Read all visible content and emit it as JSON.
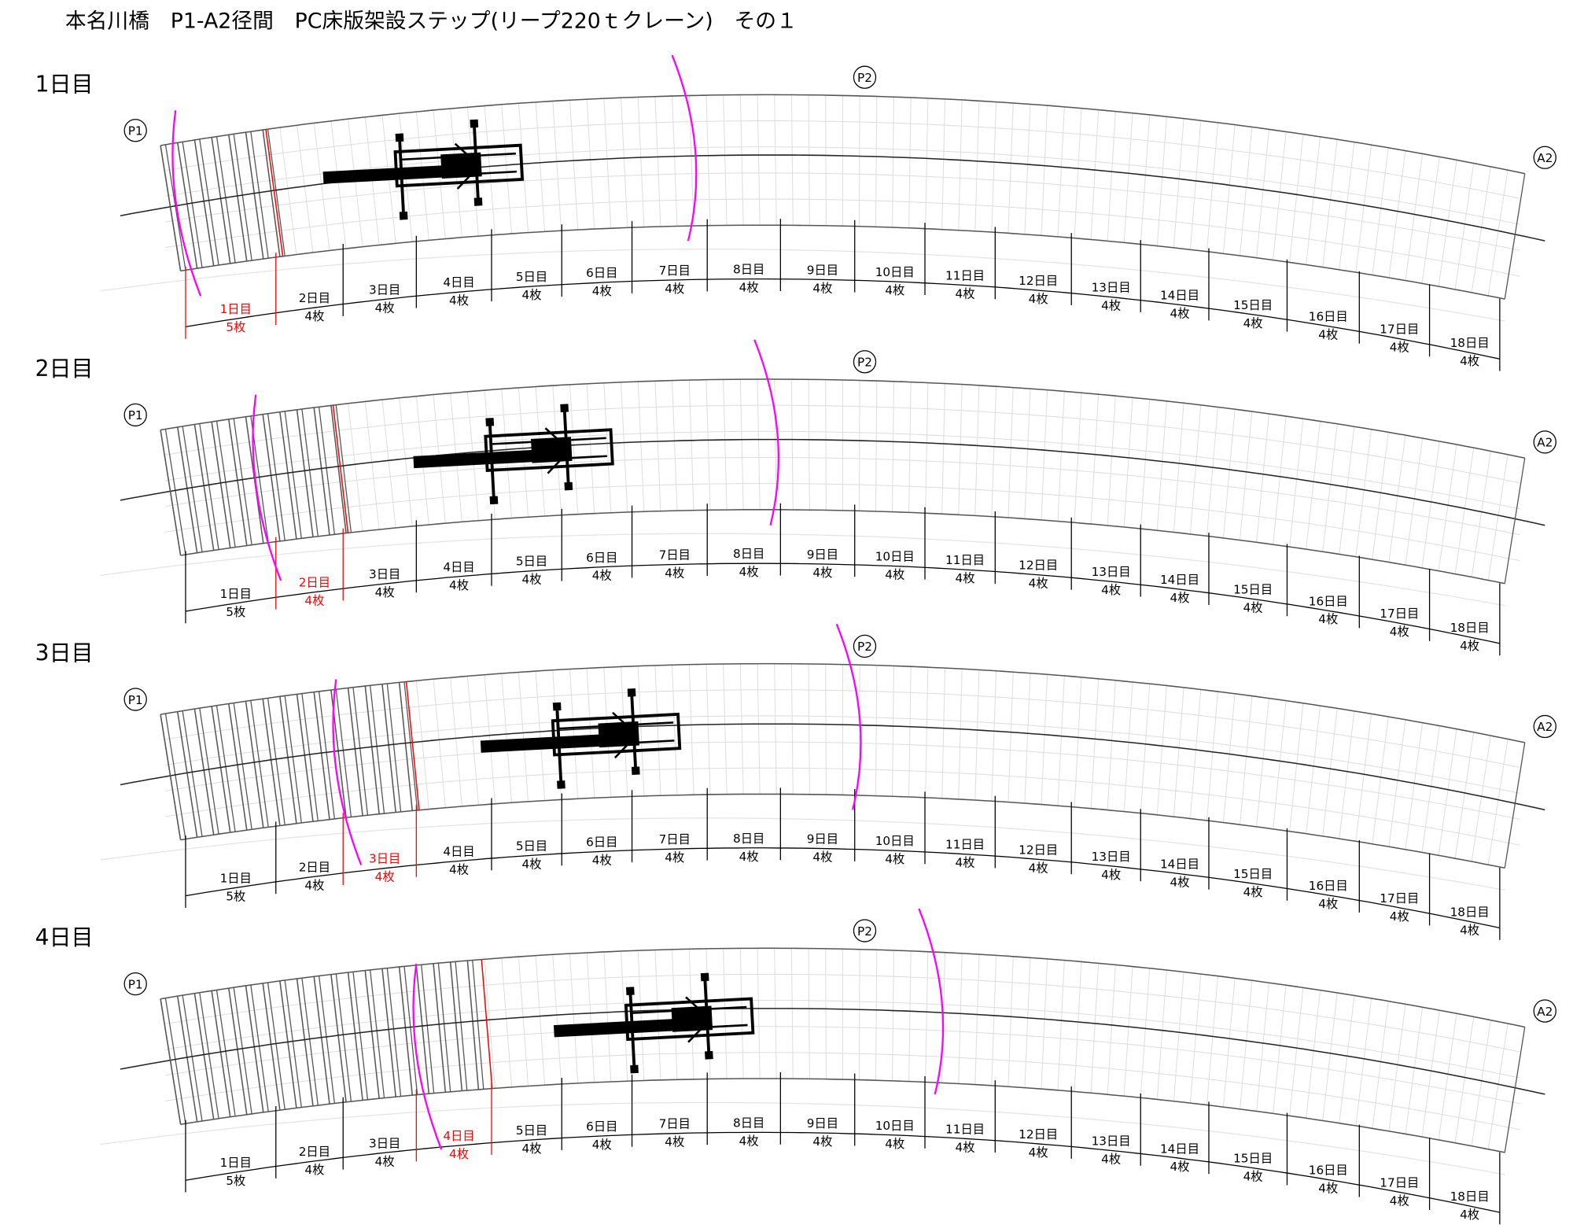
{
  "title": "本名川橋　P1-A2径間　PC床版架設ステップ(リープ220ｔクレーン)　その１",
  "panels": [
    {
      "heading": "1日目",
      "piers": [
        "P1",
        "P2",
        "A2"
      ],
      "segments": [
        {
          "day": "1日目",
          "count": "5枚",
          "color": "#ff0000"
        },
        {
          "day": "2日目",
          "count": "4枚",
          "color": "#000000"
        },
        {
          "day": "3日目",
          "count": "4枚",
          "color": "#000000"
        },
        {
          "day": "4日目",
          "count": "4枚",
          "color": "#000000"
        },
        {
          "day": "5日目",
          "count": "4枚",
          "color": "#000000"
        },
        {
          "day": "6日目",
          "count": "4枚",
          "color": "#000000"
        },
        {
          "day": "7日目",
          "count": "4枚",
          "color": "#000000"
        },
        {
          "day": "8日目",
          "count": "4枚",
          "color": "#000000"
        },
        {
          "day": "9日目",
          "count": "4枚",
          "color": "#000000"
        },
        {
          "day": "10日目",
          "count": "4枚",
          "color": "#000000"
        },
        {
          "day": "11日目",
          "count": "4枚",
          "color": "#000000"
        },
        {
          "day": "12日目",
          "count": "4枚",
          "color": "#000000"
        },
        {
          "day": "13日目",
          "count": "4枚",
          "color": "#000000"
        },
        {
          "day": "14日目",
          "count": "4枚",
          "color": "#000000"
        },
        {
          "day": "15日目",
          "count": "4枚",
          "color": "#000000"
        },
        {
          "day": "16日目",
          "count": "4枚",
          "color": "#000000"
        },
        {
          "day": "17日目",
          "count": "4枚",
          "color": "#000000"
        },
        {
          "day": "18日目",
          "count": "4枚",
          "color": "#000000"
        }
      ]
    },
    {
      "heading": "2日目",
      "piers": [
        "P1",
        "P2",
        "A2"
      ],
      "segments": [
        {
          "day": "1日目",
          "count": "5枚",
          "color": "#000000"
        },
        {
          "day": "2日目",
          "count": "4枚",
          "color": "#ff0000"
        },
        {
          "day": "3日目",
          "count": "4枚",
          "color": "#000000"
        },
        {
          "day": "4日目",
          "count": "4枚",
          "color": "#000000"
        },
        {
          "day": "5日目",
          "count": "4枚",
          "color": "#000000"
        },
        {
          "day": "6日目",
          "count": "4枚",
          "color": "#000000"
        },
        {
          "day": "7日目",
          "count": "4枚",
          "color": "#000000"
        },
        {
          "day": "8日目",
          "count": "4枚",
          "color": "#000000"
        },
        {
          "day": "9日目",
          "count": "4枚",
          "color": "#000000"
        },
        {
          "day": "10日目",
          "count": "4枚",
          "color": "#000000"
        },
        {
          "day": "11日目",
          "count": "4枚",
          "color": "#000000"
        },
        {
          "day": "12日目",
          "count": "4枚",
          "color": "#000000"
        },
        {
          "day": "13日目",
          "count": "4枚",
          "color": "#000000"
        },
        {
          "day": "14日目",
          "count": "4枚",
          "color": "#000000"
        },
        {
          "day": "15日目",
          "count": "4枚",
          "color": "#000000"
        },
        {
          "day": "16日目",
          "count": "4枚",
          "color": "#000000"
        },
        {
          "day": "17日目",
          "count": "4枚",
          "color": "#000000"
        },
        {
          "day": "18日目",
          "count": "4枚",
          "color": "#000000"
        }
      ]
    },
    {
      "heading": "3日目",
      "piers": [
        "P1",
        "P2",
        "A2"
      ],
      "segments": [
        {
          "day": "1日目",
          "count": "5枚",
          "color": "#000000"
        },
        {
          "day": "2日目",
          "count": "4枚",
          "color": "#000000"
        },
        {
          "day": "3日目",
          "count": "4枚",
          "color": "#ff0000"
        },
        {
          "day": "4日目",
          "count": "4枚",
          "color": "#000000"
        },
        {
          "day": "5日目",
          "count": "4枚",
          "color": "#000000"
        },
        {
          "day": "6日目",
          "count": "4枚",
          "color": "#000000"
        },
        {
          "day": "7日目",
          "count": "4枚",
          "color": "#000000"
        },
        {
          "day": "8日目",
          "count": "4枚",
          "color": "#000000"
        },
        {
          "day": "9日目",
          "count": "4枚",
          "color": "#000000"
        },
        {
          "day": "10日目",
          "count": "4枚",
          "color": "#000000"
        },
        {
          "day": "11日目",
          "count": "4枚",
          "color": "#000000"
        },
        {
          "day": "12日目",
          "count": "4枚",
          "color": "#000000"
        },
        {
          "day": "13日目",
          "count": "4枚",
          "color": "#000000"
        },
        {
          "day": "14日目",
          "count": "4枚",
          "color": "#000000"
        },
        {
          "day": "15日目",
          "count": "4枚",
          "color": "#000000"
        },
        {
          "day": "16日目",
          "count": "4枚",
          "color": "#000000"
        },
        {
          "day": "17日目",
          "count": "4枚",
          "color": "#000000"
        },
        {
          "day": "18日目",
          "count": "4枚",
          "color": "#000000"
        }
      ]
    },
    {
      "heading": "4日目",
      "piers": [
        "P1",
        "P2",
        "A2"
      ],
      "segments": [
        {
          "day": "1日目",
          "count": "5枚",
          "color": "#000000"
        },
        {
          "day": "2日目",
          "count": "4枚",
          "color": "#000000"
        },
        {
          "day": "3日目",
          "count": "4枚",
          "color": "#000000"
        },
        {
          "day": "4日目",
          "count": "4枚",
          "color": "#ff0000"
        },
        {
          "day": "5日目",
          "count": "4枚",
          "color": "#000000"
        },
        {
          "day": "6日目",
          "count": "4枚",
          "color": "#000000"
        },
        {
          "day": "7日目",
          "count": "4枚",
          "color": "#000000"
        },
        {
          "day": "8日目",
          "count": "4枚",
          "color": "#000000"
        },
        {
          "day": "9日目",
          "count": "4枚",
          "color": "#000000"
        },
        {
          "day": "10日目",
          "count": "4枚",
          "color": "#000000"
        },
        {
          "day": "11日目",
          "count": "4枚",
          "color": "#000000"
        },
        {
          "day": "12日目",
          "count": "4枚",
          "color": "#000000"
        },
        {
          "day": "13日目",
          "count": "4枚",
          "color": "#000000"
        },
        {
          "day": "14日目",
          "count": "4枚",
          "color": "#000000"
        },
        {
          "day": "15日目",
          "count": "4枚",
          "color": "#000000"
        },
        {
          "day": "16日目",
          "count": "4枚",
          "color": "#000000"
        },
        {
          "day": "17日目",
          "count": "4枚",
          "color": "#000000"
        },
        {
          "day": "18日目",
          "count": "4枚",
          "color": "#000000"
        }
      ]
    }
  ]
}
